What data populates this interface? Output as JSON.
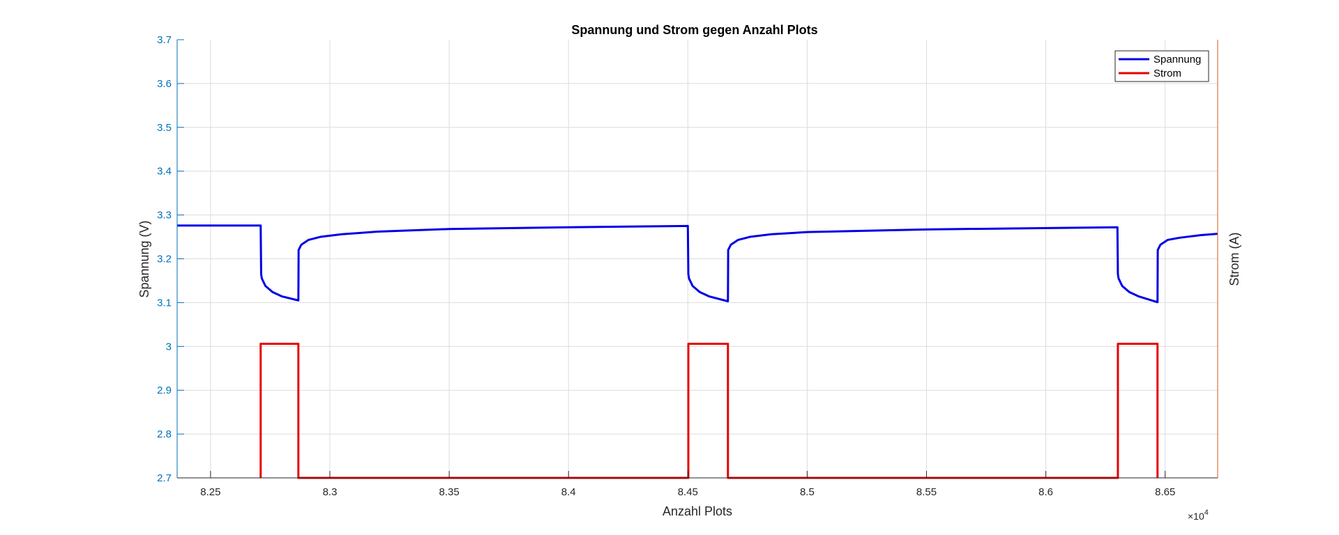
{
  "chart_data": {
    "type": "line",
    "title": "Spannung und Strom gegen Anzahl Plots",
    "xlabel": "Anzahl Plots",
    "ylabel_left": "Spannung (V)",
    "ylabel_right": "Strom (A)",
    "x_exponent_label": "×10",
    "x_exponent": "4",
    "xlim": [
      8.236,
      8.672
    ],
    "ylim": [
      2.7,
      3.7
    ],
    "x_ticks": [
      "8.25",
      "8.3",
      "8.35",
      "8.4",
      "8.45",
      "8.5",
      "8.55",
      "8.6",
      "8.65"
    ],
    "y_ticks": [
      "3.7",
      "3.6",
      "3.5",
      "3.4",
      "3.3",
      "3.2",
      "3.1",
      "3",
      "2.9",
      "2.8",
      "2.7"
    ],
    "grid": true,
    "legend_position": "top-right",
    "series": [
      {
        "name": "Spannung",
        "color": "#0000e6",
        "x": [
          8.236,
          8.271,
          8.2712,
          8.2715,
          8.273,
          8.276,
          8.28,
          8.2868,
          8.2869,
          8.288,
          8.291,
          8.296,
          8.305,
          8.32,
          8.35,
          8.4,
          8.45,
          8.4502,
          8.4505,
          8.452,
          8.455,
          8.459,
          8.4668,
          8.4669,
          8.468,
          8.471,
          8.476,
          8.485,
          8.5,
          8.55,
          8.63,
          8.6302,
          8.6305,
          8.632,
          8.635,
          8.639,
          8.6468,
          8.6469,
          8.648,
          8.651,
          8.656,
          8.665,
          8.672
        ],
        "values": [
          3.276,
          3.276,
          3.165,
          3.155,
          3.138,
          3.124,
          3.114,
          3.105,
          3.22,
          3.232,
          3.243,
          3.25,
          3.256,
          3.262,
          3.268,
          3.272,
          3.275,
          3.165,
          3.155,
          3.138,
          3.124,
          3.114,
          3.103,
          3.22,
          3.232,
          3.243,
          3.25,
          3.256,
          3.261,
          3.267,
          3.272,
          3.165,
          3.155,
          3.138,
          3.124,
          3.114,
          3.101,
          3.22,
          3.232,
          3.243,
          3.248,
          3.254,
          3.257
        ]
      },
      {
        "name": "Strom",
        "color": "#e60000",
        "x": [
          8.271,
          8.271,
          8.2868,
          8.2868,
          8.4502,
          8.4502,
          8.4668,
          8.4668,
          8.6302,
          8.6302,
          8.6468,
          8.6468
        ],
        "values": [
          2.7,
          3.006,
          3.006,
          2.7,
          2.7,
          3.006,
          3.006,
          2.7,
          2.7,
          3.006,
          3.006,
          2.7
        ]
      }
    ]
  }
}
